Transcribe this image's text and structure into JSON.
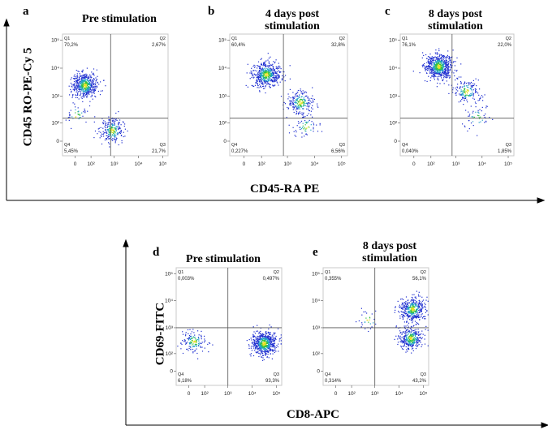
{
  "figure": {
    "group1": {
      "ylabel": "CD45 RO-PE-Cy 5",
      "xlabel": "CD45-RA PE"
    },
    "group2": {
      "ylabel": "CD69-FITC",
      "xlabel": "CD8-APC"
    }
  },
  "chart_data": [
    {
      "type": "scatter",
      "panel": "a",
      "title": "Pre stimulation",
      "x_ticks": [
        "0",
        "10²",
        "10³",
        "10⁴",
        "10⁵"
      ],
      "y_ticks": [
        "0",
        "10²",
        "10³",
        "10⁴",
        "10⁵"
      ],
      "quadrants": [
        {
          "name": "Q1",
          "value": "70,2%"
        },
        {
          "name": "Q2",
          "value": "2,67%"
        },
        {
          "name": "Q3",
          "value": "21,7%"
        },
        {
          "name": "Q4",
          "value": "5,45%"
        }
      ],
      "gate": {
        "x": 700,
        "y": 150
      },
      "clusters": [
        {
          "x": 60,
          "y": 2500,
          "n": 520
        },
        {
          "x": 800,
          "y": 60,
          "n": 230
        },
        {
          "x": 5,
          "y": 200,
          "n": 40
        }
      ]
    },
    {
      "type": "scatter",
      "panel": "b",
      "title": "4 days post stimulation",
      "x_ticks": [
        "0",
        "10²",
        "10³",
        "10⁴",
        "10⁵"
      ],
      "y_ticks": [
        "0",
        "10²",
        "10³",
        "10⁴",
        "10⁵"
      ],
      "quadrants": [
        {
          "name": "Q1",
          "value": "60,4%"
        },
        {
          "name": "Q2",
          "value": "32,8%"
        },
        {
          "name": "Q3",
          "value": "6,56%"
        },
        {
          "name": "Q4",
          "value": "0,227%"
        }
      ],
      "gate": {
        "x": 700,
        "y": 150
      },
      "clusters": [
        {
          "x": 150,
          "y": 6000,
          "n": 520
        },
        {
          "x": 3000,
          "y": 600,
          "n": 220
        },
        {
          "x": 5000,
          "y": 80,
          "n": 60
        }
      ]
    },
    {
      "type": "scatter",
      "panel": "c",
      "title": "8 days post stimulation",
      "x_ticks": [
        "0",
        "10²",
        "10³",
        "10⁴",
        "10⁵"
      ],
      "y_ticks": [
        "0",
        "10²",
        "10³",
        "10⁴",
        "10⁵"
      ],
      "quadrants": [
        {
          "name": "Q1",
          "value": "76,1%"
        },
        {
          "name": "Q2",
          "value": "22,0%"
        },
        {
          "name": "Q3",
          "value": "1,85%"
        },
        {
          "name": "Q4",
          "value": "0,040%"
        }
      ],
      "gate": {
        "x": 700,
        "y": 150
      },
      "clusters": [
        {
          "x": 200,
          "y": 12000,
          "n": 650
        },
        {
          "x": 2500,
          "y": 1500,
          "n": 170
        },
        {
          "x": 6000,
          "y": 150,
          "n": 50
        }
      ]
    },
    {
      "type": "scatter",
      "panel": "d",
      "title": "Pre stimulation",
      "x_ticks": [
        "0",
        "10²",
        "10³",
        "10⁴",
        "10⁵"
      ],
      "y_ticks": [
        "0",
        "10²",
        "10³",
        "10⁴",
        "10⁵"
      ],
      "quadrants": [
        {
          "name": "Q1",
          "value": "0,003%"
        },
        {
          "name": "Q2",
          "value": "0,497%"
        },
        {
          "name": "Q3",
          "value": "93,3%"
        },
        {
          "name": "Q4",
          "value": "6,18%"
        }
      ],
      "gate": {
        "x": 1000,
        "y": 1000
      },
      "clusters": [
        {
          "x": 30000,
          "y": 250,
          "n": 620
        },
        {
          "x": 30,
          "y": 300,
          "n": 140
        }
      ]
    },
    {
      "type": "scatter",
      "panel": "e",
      "title": "8 days post stimulation",
      "x_ticks": [
        "0",
        "10²",
        "10³",
        "10⁴",
        "10⁵"
      ],
      "y_ticks": [
        "0",
        "10²",
        "10³",
        "10⁴",
        "10⁵"
      ],
      "quadrants": [
        {
          "name": "Q1",
          "value": "0,355%"
        },
        {
          "name": "Q2",
          "value": "56,1%"
        },
        {
          "name": "Q3",
          "value": "43,2%"
        },
        {
          "name": "Q4",
          "value": "0,314%"
        }
      ],
      "gate": {
        "x": 1000,
        "y": 1000
      },
      "clusters": [
        {
          "x": 35000,
          "y": 5000,
          "n": 420
        },
        {
          "x": 30000,
          "y": 400,
          "n": 340
        },
        {
          "x": 500,
          "y": 2000,
          "n": 30
        }
      ]
    }
  ]
}
